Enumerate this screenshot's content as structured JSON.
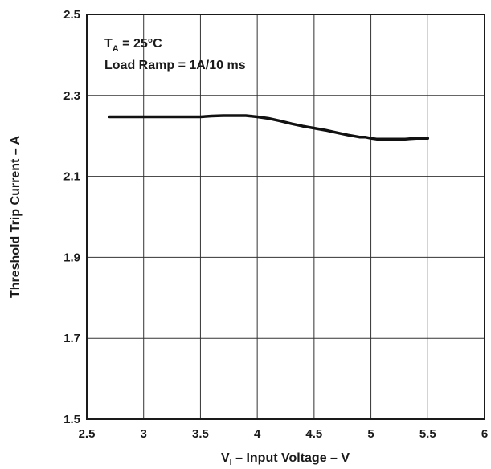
{
  "chart_data": {
    "type": "line",
    "title": "",
    "xlabel": {
      "main": "V",
      "sub": "I",
      "rest": " – Input Voltage – V"
    },
    "ylabel": "Threshold Trip Current – A",
    "xlim": [
      2.5,
      6
    ],
    "ylim": [
      1.5,
      2.5
    ],
    "x_ticks": [
      "2.5",
      "3",
      "3.5",
      "4",
      "4.5",
      "5",
      "5.5",
      "6"
    ],
    "y_ticks": [
      "1.5",
      "1.7",
      "1.9",
      "2.1",
      "2.3",
      "2.5"
    ],
    "grid": true,
    "annotations": {
      "line1": {
        "main": "T",
        "sub": "A",
        "rest": " = 25°C"
      },
      "line2": "Load Ramp = 1A/10 ms"
    },
    "series": [
      {
        "x": [
          2.7,
          3.0,
          3.3,
          3.5,
          3.6,
          3.7,
          3.9,
          4.0,
          4.1,
          4.2,
          4.3,
          4.4,
          4.5,
          4.6,
          4.7,
          4.8,
          4.9,
          4.95,
          5.0,
          5.05,
          5.1,
          5.2,
          5.3,
          5.4,
          5.5
        ],
        "y": [
          2.247,
          2.247,
          2.247,
          2.247,
          2.249,
          2.25,
          2.25,
          2.247,
          2.243,
          2.237,
          2.23,
          2.224,
          2.219,
          2.214,
          2.208,
          2.202,
          2.197,
          2.197,
          2.194,
          2.192,
          2.192,
          2.192,
          2.192,
          2.194,
          2.194
        ]
      }
    ]
  }
}
